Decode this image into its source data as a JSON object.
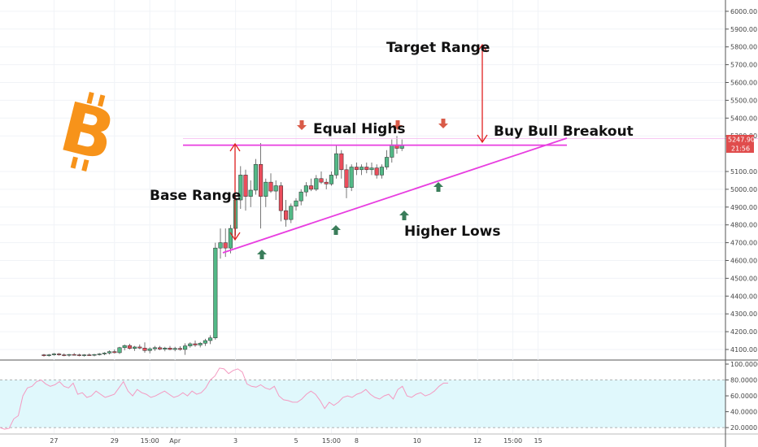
{
  "chart_data": [
    {
      "type": "candlestick",
      "title": "",
      "price_axis": {
        "ticks": [
          "6000.00",
          "5900.00",
          "5800.00",
          "5700.00",
          "5600.00",
          "5500.00",
          "5400.00",
          "5300.00",
          "5100.00",
          "5000.00",
          "4900.00",
          "4800.00",
          "4700.00",
          "4600.00",
          "4500.00",
          "4400.00",
          "4300.00",
          "4200.00",
          "4100.00"
        ],
        "ylim": [
          4070,
          6020
        ],
        "last_price": "5247.90",
        "countdown": "21:56",
        "last_price_color": "#e04c4c"
      },
      "x_ticks": [
        {
          "label": "27",
          "t": 2
        },
        {
          "label": "29",
          "t": 14
        },
        {
          "label": "15:00",
          "t": 21
        },
        {
          "label": "Apr",
          "t": 26
        },
        {
          "label": "3",
          "t": 38
        },
        {
          "label": "5",
          "t": 50
        },
        {
          "label": "15:00",
          "t": 57
        },
        {
          "label": "8",
          "t": 62
        },
        {
          "label": "10",
          "t": 74
        },
        {
          "label": "12",
          "t": 86
        },
        {
          "label": "15:00",
          "t": 93
        },
        {
          "label": "15",
          "t": 98
        }
      ],
      "candles": [
        {
          "t": 0,
          "o": 4070,
          "h": 4075,
          "l": 4060,
          "c": 4065
        },
        {
          "t": 1,
          "o": 4065,
          "h": 4075,
          "l": 4060,
          "c": 4070
        },
        {
          "t": 2,
          "o": 4070,
          "h": 4080,
          "l": 4065,
          "c": 4075
        },
        {
          "t": 3,
          "o": 4075,
          "h": 4080,
          "l": 4065,
          "c": 4070
        },
        {
          "t": 4,
          "o": 4070,
          "h": 4078,
          "l": 4062,
          "c": 4068
        },
        {
          "t": 5,
          "o": 4068,
          "h": 4075,
          "l": 4060,
          "c": 4072
        },
        {
          "t": 6,
          "o": 4072,
          "h": 4080,
          "l": 4066,
          "c": 4070
        },
        {
          "t": 7,
          "o": 4070,
          "h": 4076,
          "l": 4062,
          "c": 4066
        },
        {
          "t": 8,
          "o": 4066,
          "h": 4074,
          "l": 4060,
          "c": 4070
        },
        {
          "t": 9,
          "o": 4070,
          "h": 4078,
          "l": 4064,
          "c": 4068
        },
        {
          "t": 10,
          "o": 4068,
          "h": 4075,
          "l": 4062,
          "c": 4072
        },
        {
          "t": 11,
          "o": 4072,
          "h": 4080,
          "l": 4066,
          "c": 4075
        },
        {
          "t": 12,
          "o": 4075,
          "h": 4085,
          "l": 4068,
          "c": 4080
        },
        {
          "t": 13,
          "o": 4080,
          "h": 4095,
          "l": 4072,
          "c": 4088
        },
        {
          "t": 14,
          "o": 4088,
          "h": 4100,
          "l": 4078,
          "c": 4082
        },
        {
          "t": 15,
          "o": 4082,
          "h": 4115,
          "l": 4075,
          "c": 4110
        },
        {
          "t": 16,
          "o": 4110,
          "h": 4128,
          "l": 4095,
          "c": 4122
        },
        {
          "t": 17,
          "o": 4122,
          "h": 4132,
          "l": 4100,
          "c": 4106
        },
        {
          "t": 18,
          "o": 4106,
          "h": 4120,
          "l": 4092,
          "c": 4114
        },
        {
          "t": 19,
          "o": 4114,
          "h": 4128,
          "l": 4102,
          "c": 4108
        },
        {
          "t": 20,
          "o": 4108,
          "h": 4140,
          "l": 4082,
          "c": 4094
        },
        {
          "t": 21,
          "o": 4094,
          "h": 4112,
          "l": 4078,
          "c": 4104
        },
        {
          "t": 22,
          "o": 4104,
          "h": 4120,
          "l": 4092,
          "c": 4110
        },
        {
          "t": 23,
          "o": 4110,
          "h": 4120,
          "l": 4096,
          "c": 4102
        },
        {
          "t": 24,
          "o": 4102,
          "h": 4115,
          "l": 4090,
          "c": 4108
        },
        {
          "t": 25,
          "o": 4108,
          "h": 4120,
          "l": 4096,
          "c": 4100
        },
        {
          "t": 26,
          "o": 4100,
          "h": 4115,
          "l": 4090,
          "c": 4106
        },
        {
          "t": 27,
          "o": 4106,
          "h": 4118,
          "l": 4094,
          "c": 4100
        },
        {
          "t": 28,
          "o": 4100,
          "h": 4135,
          "l": 4070,
          "c": 4120
        },
        {
          "t": 29,
          "o": 4120,
          "h": 4140,
          "l": 4110,
          "c": 4132
        },
        {
          "t": 30,
          "o": 4132,
          "h": 4150,
          "l": 4115,
          "c": 4125
        },
        {
          "t": 31,
          "o": 4125,
          "h": 4142,
          "l": 4112,
          "c": 4135
        },
        {
          "t": 32,
          "o": 4135,
          "h": 4160,
          "l": 4120,
          "c": 4150
        },
        {
          "t": 33,
          "o": 4150,
          "h": 4180,
          "l": 4130,
          "c": 4165
        },
        {
          "t": 34,
          "o": 4165,
          "h": 4700,
          "l": 4155,
          "c": 4670
        },
        {
          "t": 35,
          "o": 4670,
          "h": 4780,
          "l": 4610,
          "c": 4700
        },
        {
          "t": 36,
          "o": 4700,
          "h": 4780,
          "l": 4620,
          "c": 4670
        },
        {
          "t": 37,
          "o": 4670,
          "h": 4800,
          "l": 4640,
          "c": 4780
        },
        {
          "t": 38,
          "o": 4780,
          "h": 4960,
          "l": 4740,
          "c": 4940
        },
        {
          "t": 39,
          "o": 4940,
          "h": 5130,
          "l": 4890,
          "c": 5080
        },
        {
          "t": 40,
          "o": 5080,
          "h": 5110,
          "l": 4880,
          "c": 4960
        },
        {
          "t": 41,
          "o": 4960,
          "h": 5050,
          "l": 4900,
          "c": 4995
        },
        {
          "t": 42,
          "o": 4995,
          "h": 5170,
          "l": 4970,
          "c": 5140
        },
        {
          "t": 43,
          "o": 5140,
          "h": 5260,
          "l": 4780,
          "c": 4960
        },
        {
          "t": 44,
          "o": 4960,
          "h": 5060,
          "l": 4900,
          "c": 5040
        },
        {
          "t": 45,
          "o": 5040,
          "h": 5090,
          "l": 4980,
          "c": 4990
        },
        {
          "t": 46,
          "o": 4990,
          "h": 5050,
          "l": 4940,
          "c": 5020
        },
        {
          "t": 47,
          "o": 5020,
          "h": 5040,
          "l": 4820,
          "c": 4880
        },
        {
          "t": 48,
          "o": 4880,
          "h": 4940,
          "l": 4790,
          "c": 4830
        },
        {
          "t": 49,
          "o": 4830,
          "h": 4920,
          "l": 4810,
          "c": 4905
        },
        {
          "t": 50,
          "o": 4905,
          "h": 4950,
          "l": 4880,
          "c": 4935
        },
        {
          "t": 51,
          "o": 4935,
          "h": 5000,
          "l": 4910,
          "c": 4985
        },
        {
          "t": 52,
          "o": 4985,
          "h": 5040,
          "l": 4960,
          "c": 5020
        },
        {
          "t": 53,
          "o": 5020,
          "h": 5060,
          "l": 4990,
          "c": 5000
        },
        {
          "t": 54,
          "o": 5000,
          "h": 5080,
          "l": 4990,
          "c": 5060
        },
        {
          "t": 55,
          "o": 5060,
          "h": 5100,
          "l": 5030,
          "c": 5040
        },
        {
          "t": 56,
          "o": 5040,
          "h": 5060,
          "l": 5000,
          "c": 5030
        },
        {
          "t": 57,
          "o": 5030,
          "h": 5100,
          "l": 5020,
          "c": 5080
        },
        {
          "t": 58,
          "o": 5080,
          "h": 5250,
          "l": 5060,
          "c": 5200
        },
        {
          "t": 59,
          "o": 5200,
          "h": 5220,
          "l": 5060,
          "c": 5110
        },
        {
          "t": 60,
          "o": 5110,
          "h": 5140,
          "l": 4950,
          "c": 5010
        },
        {
          "t": 61,
          "o": 5010,
          "h": 5140,
          "l": 4990,
          "c": 5125
        },
        {
          "t": 62,
          "o": 5125,
          "h": 5150,
          "l": 5080,
          "c": 5110
        },
        {
          "t": 63,
          "o": 5110,
          "h": 5140,
          "l": 5080,
          "c": 5125
        },
        {
          "t": 64,
          "o": 5125,
          "h": 5150,
          "l": 5090,
          "c": 5110
        },
        {
          "t": 65,
          "o": 5110,
          "h": 5150,
          "l": 5080,
          "c": 5120
        },
        {
          "t": 66,
          "o": 5120,
          "h": 5140,
          "l": 5060,
          "c": 5080
        },
        {
          "t": 67,
          "o": 5080,
          "h": 5140,
          "l": 5060,
          "c": 5125
        },
        {
          "t": 68,
          "o": 5125,
          "h": 5220,
          "l": 5110,
          "c": 5180
        },
        {
          "t": 69,
          "o": 5180,
          "h": 5280,
          "l": 5150,
          "c": 5250
        },
        {
          "t": 70,
          "o": 5250,
          "h": 5300,
          "l": 5200,
          "c": 5230
        },
        {
          "t": 71,
          "o": 5230,
          "h": 5280,
          "l": 5215,
          "c": 5248
        }
      ],
      "colors": {
        "up": "#53b987",
        "down": "#eb4d5c",
        "drawing": "#e83ee0",
        "arrow_red": "#d95b48",
        "arrow_green": "#3a7d5a",
        "range_arrow": "#e0201f",
        "bitcoin": "#f7931a"
      },
      "annotations": {
        "target_range": "Target Range",
        "equal_highs": "Equal Highs",
        "buy_bull_breakout": "Buy Bull Breakout",
        "base_range": "Base Range",
        "higher_lows": "Higher Lows"
      }
    },
    {
      "type": "line",
      "title": "",
      "ylim": [
        15,
        100
      ],
      "ticks": [
        "100.0000",
        "80.0000",
        "60.0000",
        "40.0000",
        "20.0000"
      ],
      "bands": [
        20,
        80
      ],
      "grid": true,
      "legend": "none",
      "values": [
        20,
        18,
        19,
        31,
        35,
        60,
        70,
        72,
        78,
        80,
        75,
        72,
        74,
        78,
        72,
        70,
        76,
        62,
        64,
        58,
        60,
        66,
        62,
        58,
        60,
        62,
        70,
        78,
        66,
        60,
        68,
        64,
        62,
        58,
        60,
        63,
        66,
        62,
        58,
        60,
        64,
        60,
        66,
        62,
        64,
        70,
        80,
        85,
        95,
        94,
        88,
        92,
        94,
        90,
        75,
        72,
        71,
        74,
        70,
        68,
        72,
        60,
        55,
        54,
        52,
        52,
        56,
        62,
        66,
        62,
        54,
        44,
        52,
        48,
        52,
        58,
        60,
        58,
        62,
        64,
        68,
        62,
        58,
        56,
        60,
        62,
        56,
        68,
        72,
        60,
        58,
        62,
        64,
        60,
        62,
        66,
        72,
        76,
        76
      ]
    }
  ]
}
